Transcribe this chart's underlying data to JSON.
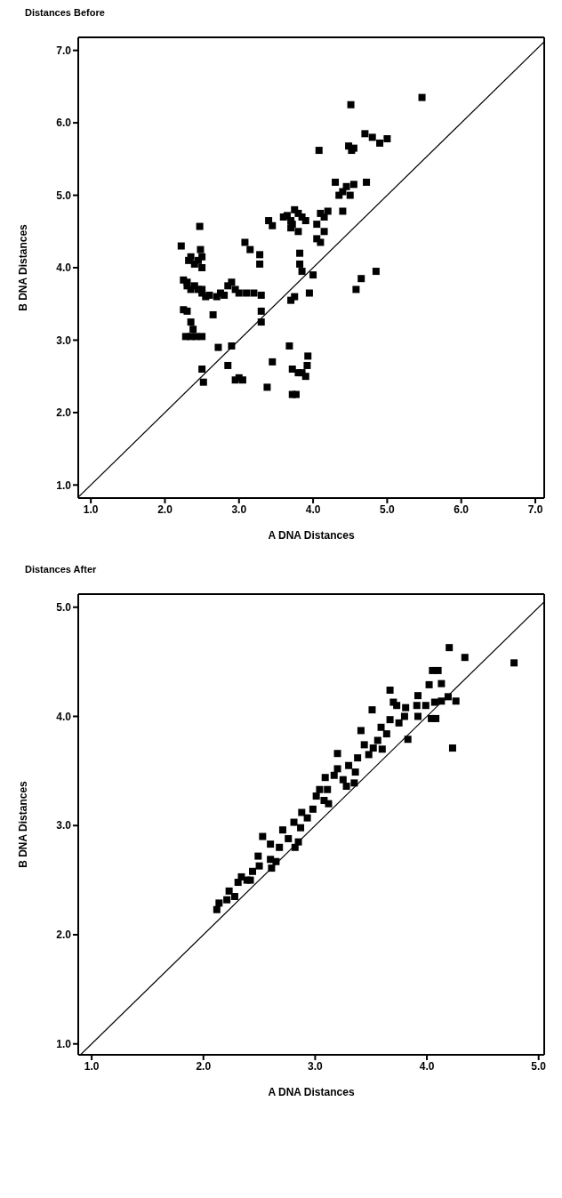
{
  "chart_data": [
    {
      "type": "scatter",
      "title": "Distances Before",
      "xlabel": "A DNA Distances",
      "ylabel": "B DNA Distances",
      "xlim": [
        0.83,
        7.12
      ],
      "ylim": [
        0.82,
        7.18
      ],
      "xticks": [
        {
          "value": 1,
          "label": "1.0"
        },
        {
          "value": 2,
          "label": "2.0"
        },
        {
          "value": 3,
          "label": "3.0"
        },
        {
          "value": 4,
          "label": "4.0"
        },
        {
          "value": 5,
          "label": "5.0"
        },
        {
          "value": 6,
          "label": "6.0"
        },
        {
          "value": 7,
          "label": "7.0"
        }
      ],
      "yticks": [
        {
          "value": 1,
          "label": "1.0"
        },
        {
          "value": 2,
          "label": "2.0"
        },
        {
          "value": 3,
          "label": "3.0"
        },
        {
          "value": 4,
          "label": "4.0"
        },
        {
          "value": 5,
          "label": "5.0"
        },
        {
          "value": 6,
          "label": "6.0"
        },
        {
          "value": 7,
          "label": "7.0"
        }
      ],
      "series": [
        {
          "marker": "square",
          "color": "#000000",
          "x": [
            2.22,
            2.25,
            2.3,
            2.32,
            2.35,
            2.4,
            2.45,
            2.48,
            2.5,
            2.47,
            2.3,
            2.35,
            2.4,
            2.45,
            2.5,
            2.55,
            2.25,
            2.3,
            2.35,
            2.38,
            2.28,
            2.35,
            2.42,
            2.5,
            2.5,
            2.52,
            2.5,
            2.5,
            2.6,
            2.7,
            2.8,
            2.85,
            2.9,
            2.95,
            3.0,
            3.1,
            3.2,
            3.3,
            2.75,
            2.65,
            2.72,
            2.85,
            2.9,
            2.95,
            3.0,
            3.05,
            3.08,
            3.15,
            3.28,
            3.28,
            3.3,
            3.3,
            3.38,
            3.4,
            3.45,
            3.45,
            3.6,
            3.65,
            3.7,
            3.72,
            3.75,
            3.8,
            3.85,
            3.9,
            3.7,
            3.8,
            3.82,
            3.82,
            3.85,
            3.75,
            3.7,
            3.68,
            3.72,
            3.8,
            3.85,
            3.9,
            3.92,
            3.93,
            3.72,
            3.77,
            3.95,
            4.05,
            4.1,
            4.15,
            4.2,
            4.05,
            4.1,
            4.15,
            4.0,
            4.08,
            4.3,
            4.35,
            4.4,
            4.45,
            4.4,
            4.5,
            4.55,
            4.48,
            4.52,
            4.55,
            4.51,
            4.7,
            4.8,
            4.9,
            5.0,
            4.72,
            4.58,
            4.65,
            4.85,
            5.47
          ],
          "values": [
            4.3,
            3.83,
            3.8,
            4.1,
            4.15,
            4.05,
            4.1,
            4.25,
            4.15,
            4.57,
            3.75,
            3.7,
            3.75,
            3.7,
            3.65,
            3.6,
            3.42,
            3.4,
            3.25,
            3.15,
            3.05,
            3.05,
            3.05,
            3.05,
            2.6,
            2.42,
            3.7,
            4.0,
            3.62,
            3.6,
            3.62,
            3.75,
            3.8,
            3.7,
            3.65,
            3.65,
            3.65,
            3.62,
            3.65,
            3.35,
            2.9,
            2.65,
            2.92,
            2.45,
            2.48,
            2.45,
            4.35,
            4.25,
            4.18,
            4.05,
            3.4,
            3.25,
            2.35,
            4.65,
            4.58,
            2.7,
            4.7,
            4.72,
            4.65,
            4.6,
            4.8,
            4.75,
            4.7,
            4.65,
            4.55,
            4.5,
            4.2,
            4.05,
            3.95,
            3.6,
            3.55,
            2.92,
            2.6,
            2.55,
            2.55,
            2.5,
            2.65,
            2.78,
            2.25,
            2.25,
            3.65,
            4.6,
            4.75,
            4.7,
            4.78,
            4.4,
            4.35,
            4.5,
            3.9,
            5.62,
            5.18,
            5.0,
            5.05,
            5.12,
            4.78,
            5.0,
            5.15,
            5.68,
            5.62,
            5.65,
            6.25,
            5.85,
            5.8,
            5.72,
            5.78,
            5.18,
            3.7,
            3.85,
            3.95,
            6.35
          ]
        },
        {
          "type": "line",
          "marker": "none",
          "color": "#000000",
          "x": [
            0.83,
            7.12
          ],
          "values": [
            0.83,
            7.12
          ]
        }
      ]
    },
    {
      "type": "scatter",
      "title": "Distances After",
      "xlabel": "A DNA Distances",
      "ylabel": "B DNA Distances",
      "xlim": [
        0.88,
        5.05
      ],
      "ylim": [
        0.9,
        5.12
      ],
      "xticks": [
        {
          "value": 1,
          "label": "1.0"
        },
        {
          "value": 2,
          "label": "2.0"
        },
        {
          "value": 3,
          "label": "3.0"
        },
        {
          "value": 4,
          "label": "4.0"
        },
        {
          "value": 5,
          "label": "5.0"
        }
      ],
      "yticks": [
        {
          "value": 1,
          "label": "1.0"
        },
        {
          "value": 2,
          "label": "2.0"
        },
        {
          "value": 3,
          "label": "3.0"
        },
        {
          "value": 4,
          "label": "4.0"
        },
        {
          "value": 5,
          "label": "5.0"
        }
      ],
      "series": [
        {
          "marker": "square",
          "color": "#000000",
          "x": [
            2.12,
            2.14,
            2.23,
            2.28,
            2.21,
            2.31,
            2.34,
            2.39,
            2.44,
            2.42,
            2.49,
            2.53,
            2.5,
            2.6,
            2.61,
            2.65,
            2.6,
            2.68,
            2.71,
            2.76,
            2.81,
            2.82,
            2.85,
            2.87,
            2.88,
            2.93,
            2.98,
            3.01,
            3.04,
            3.08,
            3.09,
            3.12,
            3.11,
            3.17,
            3.2,
            3.2,
            3.25,
            3.28,
            3.3,
            3.35,
            3.36,
            3.38,
            3.41,
            3.44,
            3.48,
            3.51,
            3.52,
            3.56,
            3.59,
            3.6,
            3.64,
            3.67,
            3.67,
            3.7,
            3.73,
            3.75,
            3.8,
            3.81,
            3.83,
            3.91,
            3.92,
            3.92,
            3.99,
            4.02,
            4.04,
            4.05,
            4.07,
            4.08,
            4.1,
            4.13,
            4.13,
            4.19,
            4.2,
            4.23,
            4.26,
            4.34,
            4.78
          ],
          "values": [
            2.23,
            2.29,
            2.4,
            2.35,
            2.32,
            2.48,
            2.53,
            2.5,
            2.58,
            2.5,
            2.72,
            2.9,
            2.63,
            2.69,
            2.61,
            2.67,
            2.83,
            2.8,
            2.96,
            2.88,
            3.03,
            2.8,
            2.85,
            2.98,
            3.12,
            3.07,
            3.15,
            3.27,
            3.33,
            3.23,
            3.44,
            3.2,
            3.33,
            3.46,
            3.66,
            3.52,
            3.42,
            3.36,
            3.55,
            3.39,
            3.49,
            3.62,
            3.87,
            3.74,
            3.65,
            4.06,
            3.71,
            3.78,
            3.9,
            3.7,
            3.84,
            4.24,
            3.97,
            4.13,
            4.1,
            3.94,
            4.0,
            4.08,
            3.79,
            4.1,
            4.19,
            4.0,
            4.1,
            4.29,
            3.98,
            4.42,
            4.13,
            3.98,
            4.42,
            4.3,
            4.14,
            4.18,
            4.63,
            3.71,
            4.14,
            4.54,
            4.49
          ]
        },
        {
          "type": "line",
          "marker": "none",
          "color": "#000000",
          "x": [
            0.9,
            5.05
          ],
          "values": [
            0.9,
            5.05
          ]
        }
      ]
    }
  ]
}
